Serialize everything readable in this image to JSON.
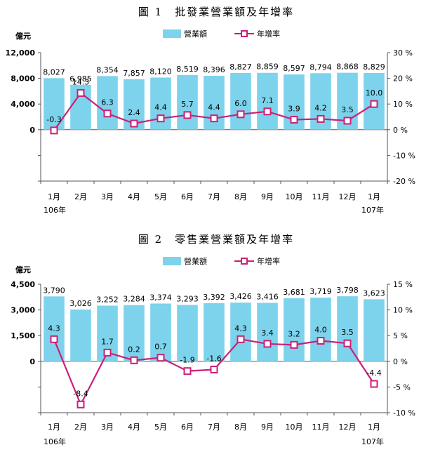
{
  "charts": [
    {
      "title": "圖 1　批發業營業額及年增率",
      "left_unit": "億元",
      "categories": [
        "1月",
        "2月",
        "3月",
        "4月",
        "5月",
        "6月",
        "7月",
        "8月",
        "9月",
        "10月",
        "11月",
        "12月",
        "1月"
      ],
      "year_labels": {
        "first": "106年",
        "last": "107年"
      }
    },
    {
      "title": "圖 2　零售業營業額及年增率",
      "left_unit": "億元",
      "categories": [
        "1月",
        "2月",
        "3月",
        "4月",
        "5月",
        "6月",
        "7月",
        "8月",
        "9月",
        "10月",
        "11月",
        "12月",
        "1月"
      ],
      "year_labels": {
        "first": "106年",
        "last": "107年"
      }
    }
  ],
  "legend": {
    "bar": "營業額",
    "line": "年增率"
  },
  "colors": {
    "bar": "#7dd3ec",
    "line": "#cc1f79",
    "axis": "#555555",
    "marker_fill": "#ffffff"
  },
  "chart_data": [
    {
      "type": "bar+line",
      "title": "圖 1　批發業營業額及年增率",
      "categories": [
        "1月",
        "2月",
        "3月",
        "4月",
        "5月",
        "6月",
        "7月",
        "8月",
        "9月",
        "10月",
        "11月",
        "12月",
        "1月"
      ],
      "series": [
        {
          "name": "營業額",
          "axis": "left",
          "type": "bar",
          "values": [
            8027,
            6985,
            8354,
            7857,
            8120,
            8519,
            8396,
            8827,
            8859,
            8597,
            8794,
            8868,
            8829
          ],
          "labels": [
            "8,027",
            "6,985",
            "8,354",
            "7,857",
            "8,120",
            "8,519",
            "8,396",
            "8,827",
            "8,859",
            "8,597",
            "8,794",
            "8,868",
            "8,829"
          ]
        },
        {
          "name": "年增率",
          "axis": "right",
          "type": "line",
          "values": [
            -0.3,
            14.3,
            6.3,
            2.4,
            4.4,
            5.7,
            4.4,
            6.0,
            7.1,
            3.9,
            4.2,
            3.5,
            10.0
          ],
          "labels": [
            "-0.3",
            "14.3",
            "6.3",
            "2.4",
            "4.4",
            "5.7",
            "4.4",
            "6.0",
            "7.1",
            "3.9",
            "4.2",
            "3.5",
            "10.0"
          ]
        }
      ],
      "y_left": {
        "label": "億元",
        "range": [
          -8000,
          12000
        ],
        "ticks": [
          0,
          4000,
          8000,
          12000
        ],
        "tick_labels": [
          "0",
          "4,000",
          "8,000",
          "12,000"
        ]
      },
      "y_right": {
        "range": [
          -20,
          30
        ],
        "ticks": [
          -20,
          -10,
          0,
          10,
          20,
          30
        ],
        "tick_labels": [
          "-20 %",
          "-10 %",
          "0 %",
          "10 %",
          "20 %",
          "30 %"
        ]
      }
    },
    {
      "type": "bar+line",
      "title": "圖 2　零售業營業額及年增率",
      "categories": [
        "1月",
        "2月",
        "3月",
        "4月",
        "5月",
        "6月",
        "7月",
        "8月",
        "9月",
        "10月",
        "11月",
        "12月",
        "1月"
      ],
      "series": [
        {
          "name": "營業額",
          "axis": "left",
          "type": "bar",
          "values": [
            3790,
            3026,
            3252,
            3284,
            3374,
            3293,
            3392,
            3426,
            3416,
            3681,
            3719,
            3798,
            3623
          ],
          "labels": [
            "3,790",
            "3,026",
            "3,252",
            "3,284",
            "3,374",
            "3,293",
            "3,392",
            "3,426",
            "3,416",
            "3,681",
            "3,719",
            "3,798",
            "3,623"
          ]
        },
        {
          "name": "年增率",
          "axis": "right",
          "type": "line",
          "values": [
            4.3,
            -8.4,
            1.7,
            0.2,
            0.7,
            -1.9,
            -1.6,
            4.3,
            3.4,
            3.2,
            4.0,
            3.5,
            -4.4
          ],
          "labels": [
            "4.3",
            "-8.4",
            "1.7",
            "0.2",
            "0.7",
            "-1.9",
            "-1.6",
            "4.3",
            "3.4",
            "3.2",
            "4.0",
            "3.5",
            "-4.4"
          ]
        }
      ],
      "y_left": {
        "label": "億元",
        "range": [
          -3000,
          4500
        ],
        "ticks": [
          0,
          1500,
          3000,
          4500
        ],
        "tick_labels": [
          "0",
          "1,500",
          "3,000",
          "4,500"
        ]
      },
      "y_right": {
        "range": [
          -10,
          15
        ],
        "ticks": [
          -10,
          -5,
          0,
          5,
          10,
          15
        ],
        "tick_labels": [
          "-10 %",
          "-5 %",
          "0 %",
          "5 %",
          "10 %",
          "15 %"
        ]
      }
    }
  ]
}
